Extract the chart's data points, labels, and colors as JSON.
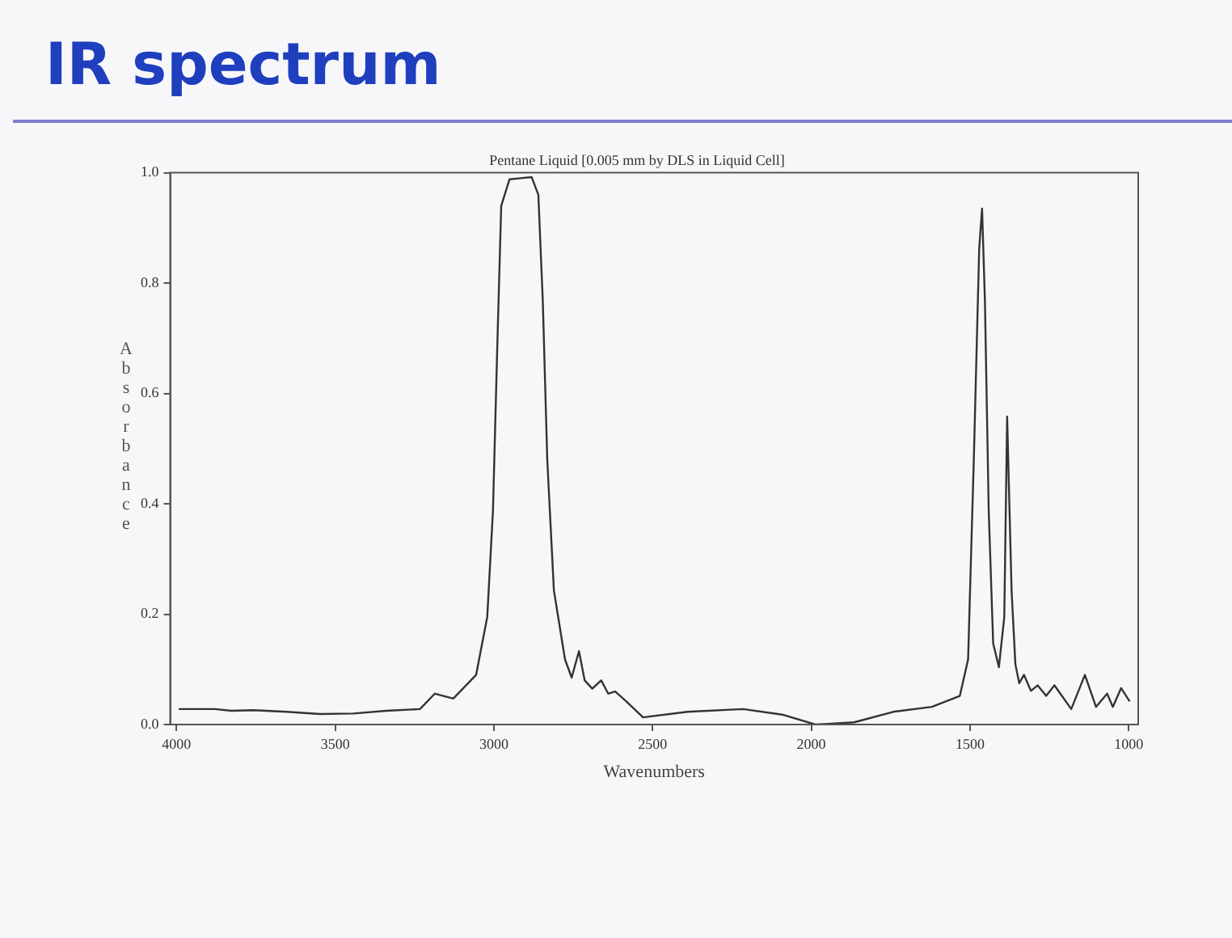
{
  "chart_data": {
    "type": "line",
    "title": "IR spectrum",
    "subtitle": "Pentane Liquid [0.005 mm by DLS in Liquid Cell]",
    "xlabel": "Wavenumbers",
    "ylabel": "Absorbance",
    "xlim": [
      4020,
      970
    ],
    "ylim": [
      0,
      1
    ],
    "xticks": [
      4000,
      3500,
      3000,
      2500,
      2000,
      1500,
      1000
    ],
    "yticks": [
      {
        "value": 0,
        "label": "0.0"
      },
      0.2,
      0.4,
      0.6,
      0.8,
      {
        "value": 1,
        "label": "1.0"
      }
    ],
    "grid": false,
    "marker": "none",
    "line_style": "solid",
    "series": [
      {
        "color": "#333333",
        "x": [
          3993,
          3879,
          3827,
          3758,
          3653,
          3548,
          3443,
          3338,
          3233,
          3186,
          3128,
          3056,
          3021,
          3003,
          2990,
          2977,
          2951,
          2916,
          2881,
          2860,
          2846,
          2832,
          2811,
          2776,
          2755,
          2732,
          2714,
          2690,
          2662,
          2640,
          2618,
          2583,
          2530,
          2390,
          2215,
          2092,
          1987,
          1865,
          1742,
          1620,
          1532,
          1506,
          1488,
          1471,
          1462,
          1453,
          1441,
          1427,
          1409,
          1392,
          1383,
          1369,
          1357,
          1345,
          1330,
          1308,
          1287,
          1260,
          1234,
          1181,
          1138,
          1103,
          1068,
          1050,
          1024,
          997
        ],
        "values": [
          0.028,
          0.028,
          0.025,
          0.026,
          0.023,
          0.019,
          0.02,
          0.025,
          0.028,
          0.056,
          0.047,
          0.09,
          0.195,
          0.387,
          0.672,
          0.94,
          0.988,
          0.99,
          0.992,
          0.96,
          0.768,
          0.481,
          0.243,
          0.118,
          0.085,
          0.133,
          0.08,
          0.065,
          0.08,
          0.056,
          0.06,
          0.042,
          0.013,
          0.023,
          0.028,
          0.018,
          0.0,
          0.004,
          0.023,
          0.032,
          0.052,
          0.118,
          0.481,
          0.863,
          0.935,
          0.768,
          0.386,
          0.147,
          0.104,
          0.195,
          0.558,
          0.243,
          0.109,
          0.075,
          0.09,
          0.061,
          0.071,
          0.052,
          0.071,
          0.028,
          0.09,
          0.032,
          0.056,
          0.032,
          0.066,
          0.042
        ]
      }
    ]
  }
}
